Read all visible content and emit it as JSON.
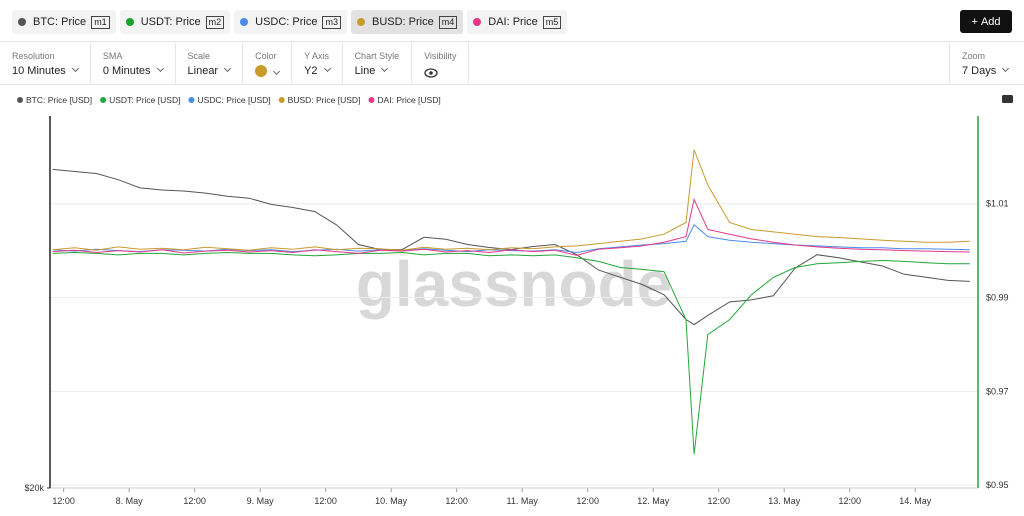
{
  "toolbar": {
    "metrics": [
      {
        "label": "BTC: Price",
        "tag": "m1",
        "color": "#555555"
      },
      {
        "label": "USDT: Price",
        "tag": "m2",
        "color": "#1aa32a"
      },
      {
        "label": "USDC: Price",
        "tag": "m3",
        "color": "#4a8be8"
      },
      {
        "label": "BUSD: Price",
        "tag": "m4",
        "color": "#c89b2c"
      },
      {
        "label": "DAI: Price",
        "tag": "m5",
        "color": "#e8388a"
      }
    ],
    "add_button": "Add"
  },
  "settings": {
    "items": [
      {
        "label": "Resolution",
        "value": "10 Minutes"
      },
      {
        "label": "SMA",
        "value": "0 Minutes"
      },
      {
        "label": "Scale",
        "value": "Linear"
      },
      {
        "label": "Color",
        "swatch": "#c89b2c"
      },
      {
        "label": "Y Axis",
        "value": "Y2"
      },
      {
        "label": "Chart Style",
        "value": "Line"
      },
      {
        "label": "Visibility"
      }
    ],
    "zoom": {
      "label": "Zoom",
      "value": "7 Days"
    }
  },
  "chart_data": {
    "type": "line",
    "watermark": "glassnode",
    "grid": true,
    "y2_axis_color": "#22a83a",
    "x": [
      10,
      14,
      18,
      22,
      26,
      30,
      34,
      38,
      42,
      46,
      50,
      54,
      58,
      62,
      66,
      70,
      74,
      78,
      82,
      86,
      90,
      94,
      98,
      102,
      106,
      110,
      114,
      118,
      122,
      126,
      127.5,
      130,
      134,
      138,
      142,
      146,
      150,
      154,
      158,
      162,
      166,
      170,
      174,
      178
    ],
    "xlim": [
      9.5,
      179.5
    ],
    "xticks": [
      {
        "value": 12,
        "label": "12:00"
      },
      {
        "value": 24,
        "label": "8. May"
      },
      {
        "value": 36,
        "label": "12:00"
      },
      {
        "value": 48,
        "label": "9. May"
      },
      {
        "value": 60,
        "label": "12:00"
      },
      {
        "value": 72,
        "label": "10. May"
      },
      {
        "value": 84,
        "label": "12:00"
      },
      {
        "value": 96,
        "label": "11. May"
      },
      {
        "value": 108,
        "label": "12:00"
      },
      {
        "value": 120,
        "label": "12. May"
      },
      {
        "value": 132,
        "label": "12:00"
      },
      {
        "value": 144,
        "label": "13. May"
      },
      {
        "value": 156,
        "label": "12:00"
      },
      {
        "value": 168,
        "label": "14. May"
      }
    ],
    "ylim": [
      20000,
      38100
    ],
    "yticks": [
      {
        "value": 20000,
        "label": "$20k"
      }
    ],
    "y2lim": [
      0.9494,
      1.0287
    ],
    "y2ticks": [
      {
        "value": 0.95,
        "label": "$0.95"
      },
      {
        "value": 0.97,
        "label": "$0.97"
      },
      {
        "value": 0.99,
        "label": "$0.99"
      },
      {
        "value": 1.01,
        "label": "$1.01"
      }
    ],
    "series": [
      {
        "name": "BTC: Price [USD]",
        "color": "#555555",
        "axis": "y",
        "values": [
          35500,
          35400,
          35300,
          35000,
          34600,
          34500,
          34450,
          34350,
          34200,
          34100,
          33800,
          33650,
          33450,
          32800,
          31850,
          31600,
          31600,
          32200,
          32100,
          31850,
          31700,
          31600,
          31750,
          31850,
          31350,
          30600,
          30250,
          29900,
          29400,
          28200,
          27950,
          28400,
          29050,
          29150,
          29350,
          30700,
          31350,
          31200,
          31000,
          30800,
          30400,
          30250,
          30100,
          30050
        ]
      },
      {
        "name": "USDT: Price [USD]",
        "color": "#22a83a",
        "axis": "y2",
        "values": [
          0.9994,
          0.9996,
          0.9994,
          0.9991,
          0.9994,
          0.9994,
          0.9991,
          0.9994,
          0.9996,
          0.9994,
          0.9994,
          0.9991,
          0.9989,
          0.9991,
          0.9994,
          0.9994,
          0.9996,
          0.9991,
          0.9994,
          0.9994,
          0.9989,
          0.9991,
          0.9989,
          0.9991,
          0.9985,
          0.9977,
          0.9964,
          0.996,
          0.9955,
          0.9853,
          0.9566,
          0.9821,
          0.9853,
          0.9906,
          0.9943,
          0.9964,
          0.9972,
          0.9974,
          0.9977,
          0.9979,
          0.9977,
          0.9974,
          0.9972,
          0.9972
        ]
      },
      {
        "name": "USDC: Price [USD]",
        "color": "#4a8be8",
        "axis": "y2",
        "values": [
          1.0002,
          0.9999,
          1.0003,
          1.0,
          0.9998,
          1.0002,
          1.0001,
          0.9999,
          1.0003,
          1.0,
          1.0002,
          0.9998,
          1.0001,
          1.0003,
          0.9999,
          1.0002,
          1.0,
          1.0004,
          1.0001,
          0.9998,
          1.0002,
          1.0,
          0.9999,
          1.0002,
          0.9996,
          1.0004,
          1.0008,
          1.0012,
          1.0015,
          1.002,
          1.0055,
          1.003,
          1.0022,
          1.0018,
          1.0015,
          1.0012,
          1.001,
          1.0008,
          1.0006,
          1.0006,
          1.0004,
          1.0004,
          1.0003,
          1.0002
        ]
      },
      {
        "name": "BUSD: Price [USD]",
        "color": "#c89b2c",
        "axis": "y2",
        "values": [
          1.0002,
          1.0006,
          1.0001,
          1.0008,
          1.0003,
          1.0005,
          1.0002,
          1.0007,
          1.0004,
          1.0001,
          1.0006,
          1.0003,
          1.0008,
          1.0002,
          1.0005,
          1.0004,
          1.0001,
          1.0007,
          1.0003,
          1.0005,
          1.0002,
          1.0006,
          1.0004,
          1.0008,
          1.001,
          1.0015,
          1.002,
          1.0025,
          1.0035,
          1.006,
          1.0215,
          1.014,
          1.006,
          1.0045,
          1.004,
          1.0035,
          1.003,
          1.0028,
          1.0025,
          1.0022,
          1.002,
          1.0018,
          1.0018,
          1.002
        ]
      },
      {
        "name": "DAI: Price [USD]",
        "color": "#e8388a",
        "axis": "y2",
        "values": [
          0.9998,
          1.0001,
          0.9996,
          1.0,
          0.9997,
          1.0002,
          0.9995,
          0.9999,
          1.0001,
          0.9997,
          1.0,
          0.9996,
          1.0002,
          0.9998,
          0.9994,
          1.0001,
          0.9999,
          1.0003,
          0.9997,
          1.0,
          0.9996,
          1.0002,
          0.9998,
          1.0001,
          0.999,
          1.0003,
          1.0006,
          1.001,
          1.0018,
          1.003,
          1.0109,
          1.0045,
          1.0035,
          1.0025,
          1.0018,
          1.0012,
          1.0008,
          1.0005,
          1.0003,
          1.0002,
          1.0,
          0.9999,
          0.9998,
          0.9997
        ]
      }
    ]
  }
}
